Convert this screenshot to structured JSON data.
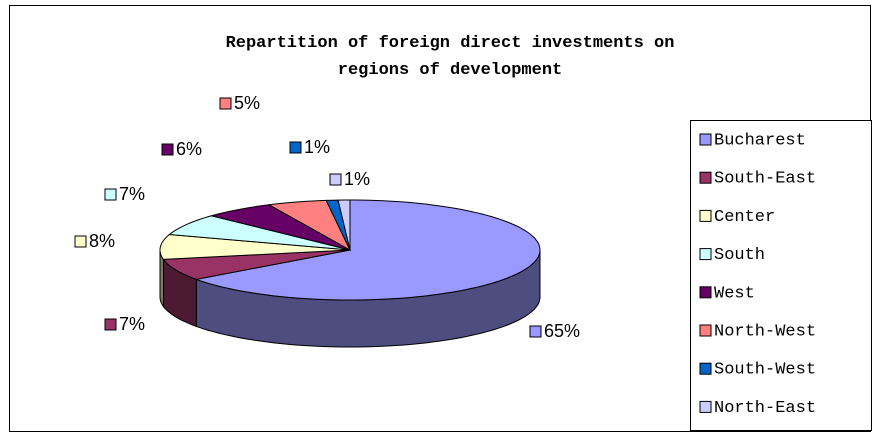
{
  "chart_data": {
    "type": "pie3d",
    "title": "Repartition of foreign direct investments on regions of development",
    "categories": [
      "Bucharest",
      "South-East",
      "Center",
      "South",
      "West",
      "North-West",
      "South-West",
      "North-East"
    ],
    "values": [
      65,
      7,
      8,
      7,
      6,
      5,
      1,
      1
    ],
    "value_labels": [
      "65%",
      "7%",
      "8%",
      "7%",
      "6%",
      "5%",
      "1%",
      "1%"
    ],
    "colors": [
      "#9999ff",
      "#993366",
      "#ffffcc",
      "#ccffff",
      "#660066",
      "#ff8080",
      "#0066cc",
      "#ccccff"
    ],
    "legend": "right"
  }
}
